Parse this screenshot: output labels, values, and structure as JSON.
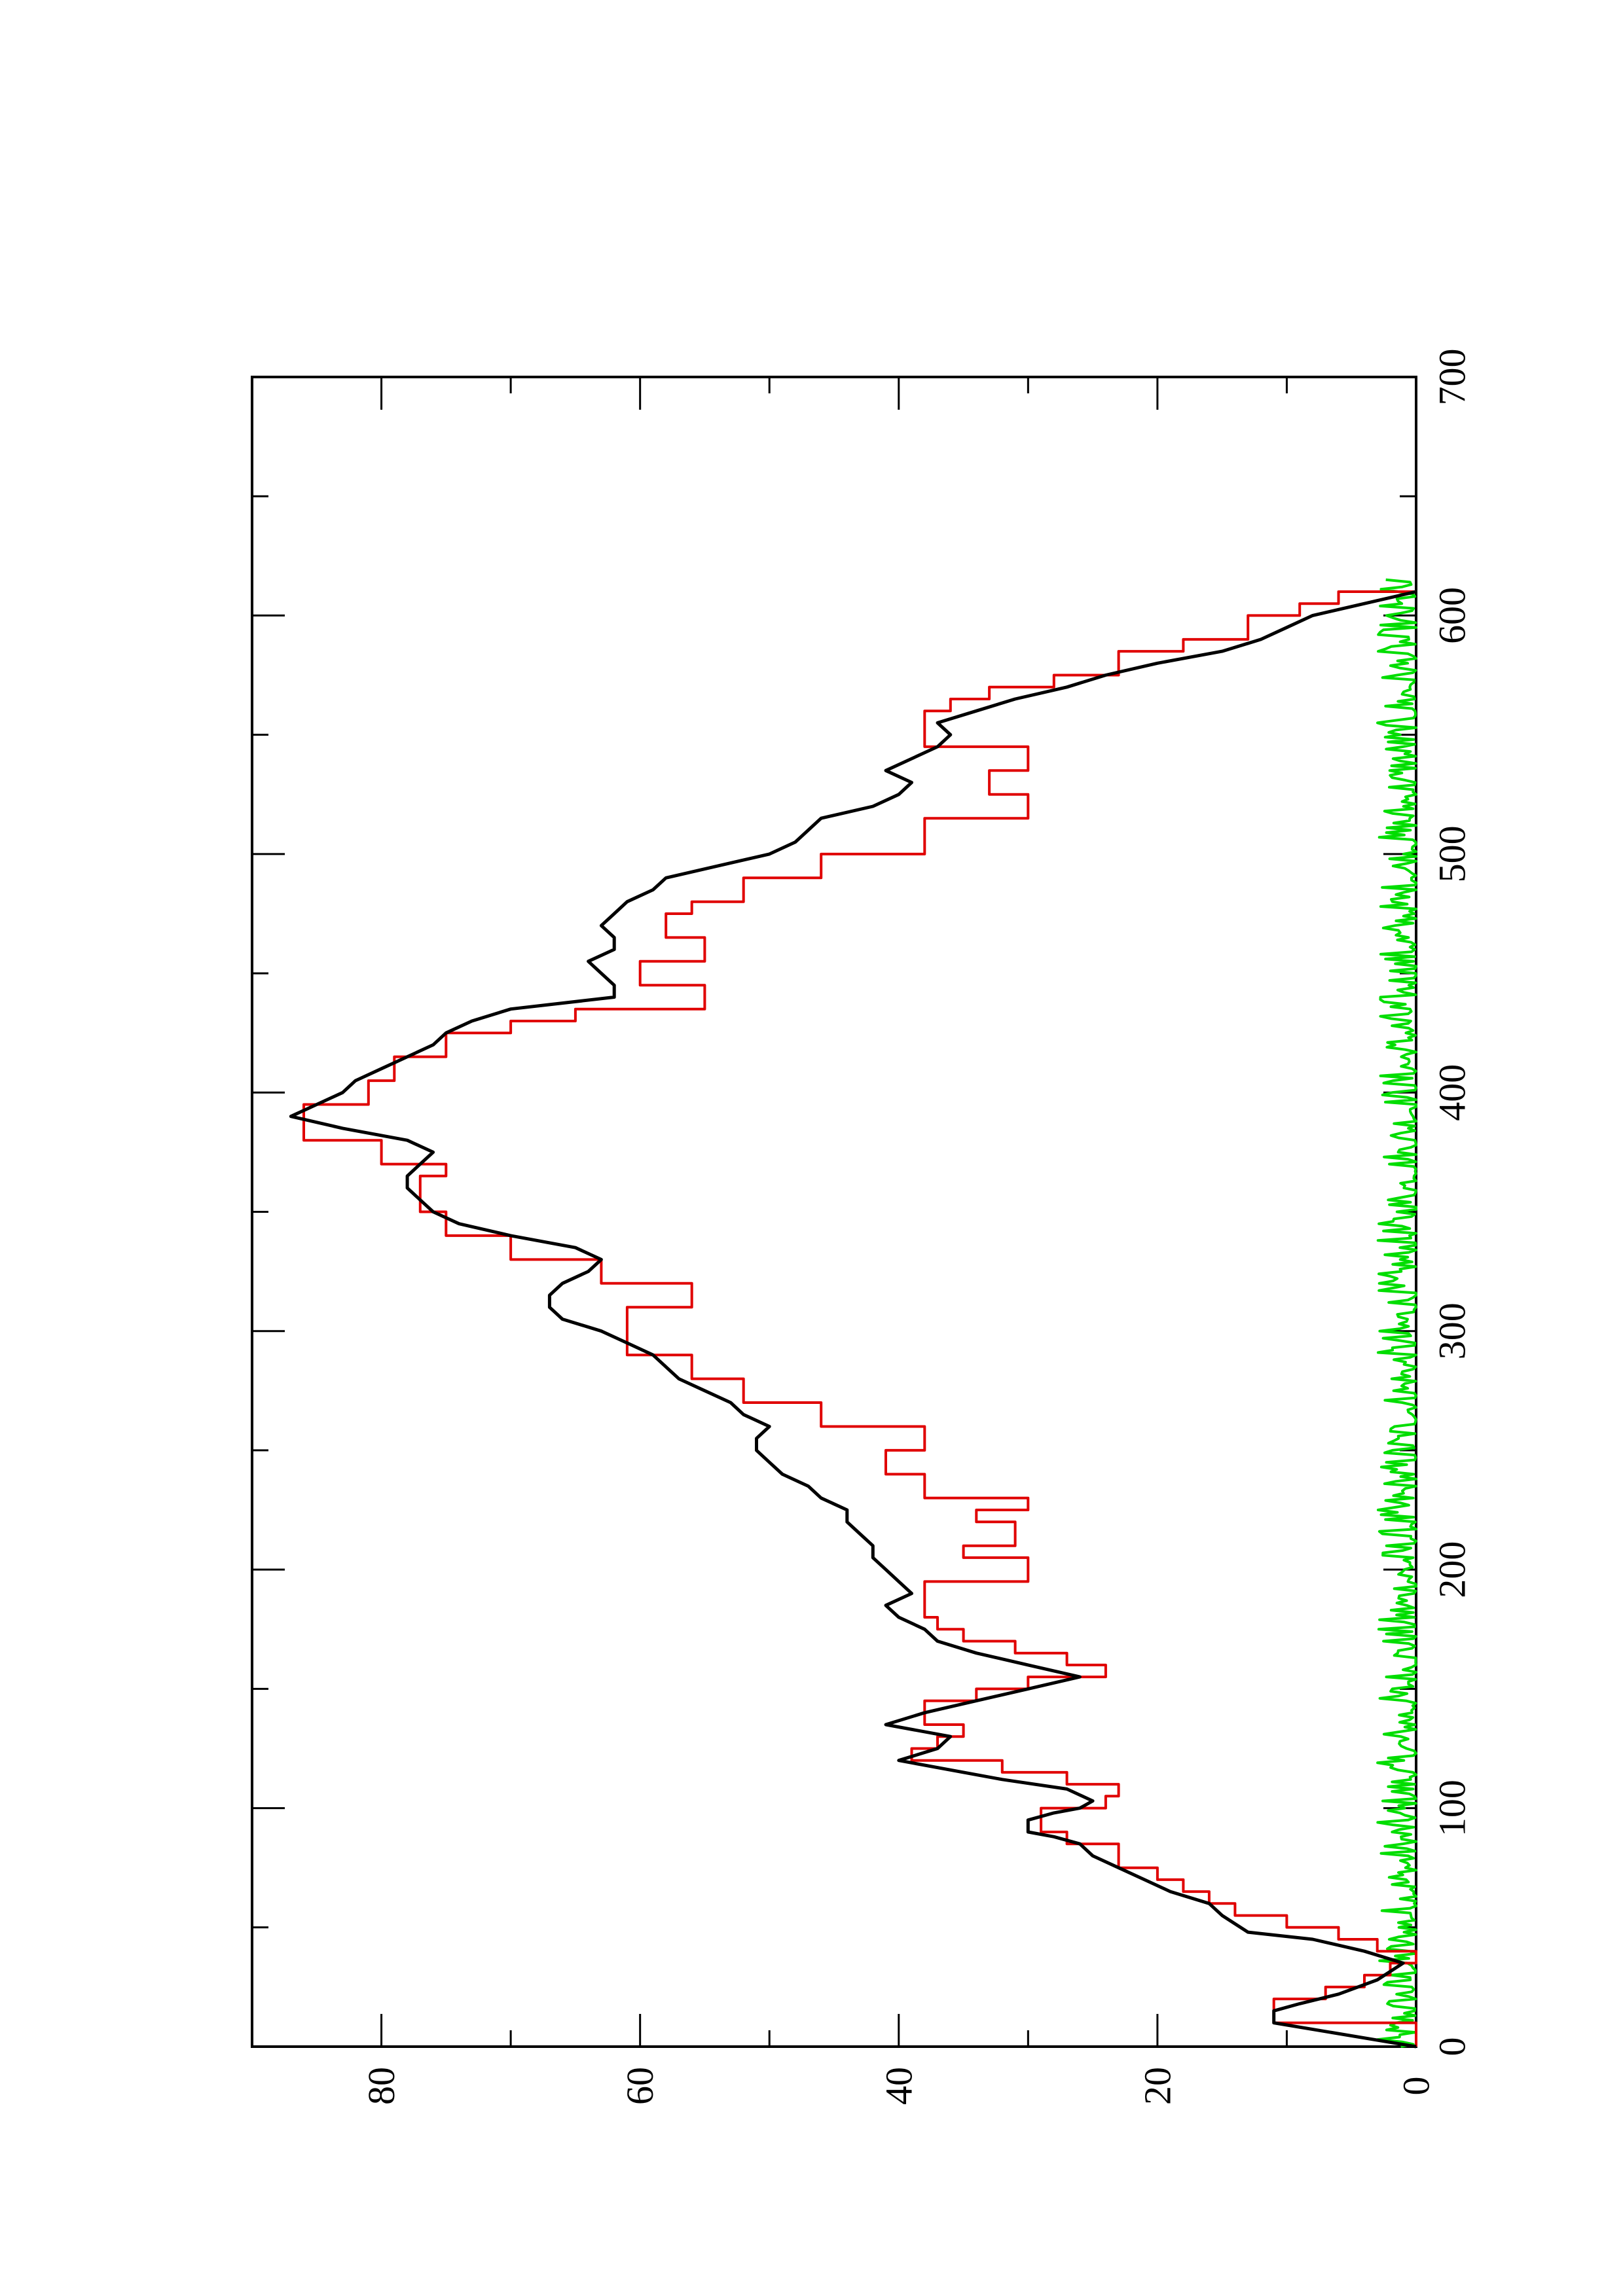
{
  "chart_data": {
    "type": "line",
    "orientation": "rotated-90-ccw",
    "title": "",
    "xlabel": "",
    "ylabel": "",
    "xlim": [
      0,
      700
    ],
    "ylim": [
      0,
      90
    ],
    "x_major_ticks": [
      0,
      100,
      200,
      300,
      400,
      500,
      600,
      700
    ],
    "x_minor_ticks": [
      50,
      150,
      250,
      350,
      450,
      550,
      650
    ],
    "y_major_ticks": [
      0,
      20,
      40,
      60,
      80
    ],
    "y_minor_ticks": [
      10,
      30,
      50,
      70
    ],
    "x_tick_labels": [
      "0",
      "100",
      "200",
      "300",
      "400",
      "500",
      "600",
      "700"
    ],
    "y_tick_labels": [
      "0",
      "20",
      "40",
      "60",
      "80"
    ],
    "grid": false,
    "legend": "none",
    "series": [
      {
        "color": "#000000",
        "style": "line",
        "x": [
          0,
          10,
          15,
          18,
          22,
          28,
          35,
          40,
          45,
          48,
          55,
          60,
          65,
          70,
          75,
          80,
          85,
          88,
          90,
          95,
          98,
          100,
          103,
          108,
          112,
          115,
          120,
          125,
          130,
          135,
          140,
          145,
          150,
          155,
          160,
          165,
          170,
          175,
          180,
          185,
          190,
          195,
          200,
          205,
          210,
          215,
          220,
          225,
          230,
          235,
          240,
          245,
          250,
          255,
          260,
          265,
          270,
          275,
          280,
          285,
          290,
          295,
          300,
          305,
          310,
          315,
          320,
          325,
          330,
          335,
          340,
          345,
          350,
          355,
          360,
          365,
          370,
          375,
          380,
          385,
          390,
          395,
          400,
          405,
          410,
          415,
          420,
          425,
          430,
          435,
          440,
          445,
          450,
          455,
          460,
          465,
          470,
          475,
          480,
          485,
          490,
          495,
          500,
          505,
          510,
          515,
          520,
          525,
          530,
          535,
          540,
          545,
          550,
          555,
          560,
          565,
          570,
          575,
          580,
          585,
          590,
          595,
          600,
          605,
          610
        ],
        "y": [
          0,
          11,
          11,
          9,
          6,
          3,
          1,
          4,
          8,
          13,
          15,
          16,
          19,
          21,
          23,
          25,
          26,
          28,
          30,
          30,
          28,
          26,
          25,
          27,
          32,
          35,
          40,
          37,
          36,
          41,
          38,
          34,
          30,
          26,
          30,
          34,
          37,
          38,
          40,
          41,
          39,
          40,
          41,
          42,
          42,
          43,
          44,
          44,
          46,
          47,
          49,
          50,
          51,
          51,
          50,
          52,
          53,
          55,
          57,
          58,
          59,
          61,
          63,
          66,
          67,
          67,
          66,
          64,
          63,
          65,
          70,
          74,
          76,
          77,
          78,
          78,
          77,
          76,
          78,
          83,
          87,
          85,
          83,
          82,
          80,
          78,
          76,
          75,
          73,
          70,
          62,
          62,
          63,
          64,
          62,
          62,
          63,
          62,
          61,
          59,
          58,
          54,
          50,
          48,
          47,
          46,
          42,
          40,
          39,
          41,
          39,
          37,
          36,
          37,
          34,
          31,
          27,
          24,
          20,
          15,
          12,
          10,
          8,
          4,
          0
        ]
      },
      {
        "color": "#e00000",
        "style": "step",
        "x": [
          0,
          10,
          15,
          20,
          25,
          30,
          35,
          40,
          45,
          50,
          55,
          60,
          65,
          70,
          75,
          80,
          85,
          90,
          95,
          100,
          105,
          110,
          115,
          120,
          125,
          130,
          135,
          140,
          145,
          150,
          155,
          160,
          165,
          170,
          175,
          180,
          185,
          190,
          195,
          200,
          205,
          210,
          215,
          220,
          225,
          230,
          235,
          240,
          245,
          250,
          255,
          260,
          265,
          270,
          275,
          280,
          285,
          290,
          295,
          300,
          305,
          310,
          315,
          320,
          325,
          330,
          335,
          340,
          345,
          350,
          355,
          360,
          365,
          370,
          375,
          380,
          385,
          390,
          395,
          400,
          405,
          410,
          415,
          420,
          425,
          430,
          435,
          440,
          445,
          450,
          455,
          460,
          465,
          470,
          475,
          480,
          485,
          490,
          495,
          500,
          505,
          510,
          515,
          520,
          525,
          530,
          535,
          540,
          545,
          550,
          555,
          560,
          565,
          570,
          575,
          580,
          585,
          590,
          595,
          600,
          605,
          610
        ],
        "y": [
          0,
          11,
          11,
          7,
          4,
          2,
          0,
          3,
          6,
          10,
          14,
          16,
          18,
          20,
          23,
          23,
          27,
          29,
          29,
          24,
          23,
          27,
          32,
          39,
          37,
          35,
          38,
          38,
          34,
          30,
          24,
          27,
          31,
          35,
          37,
          38,
          38,
          38,
          30,
          30,
          35,
          31,
          31,
          34,
          30,
          38,
          38,
          41,
          41,
          38,
          38,
          46,
          46,
          52,
          52,
          56,
          56,
          61,
          61,
          61,
          61,
          56,
          56,
          63,
          63,
          70,
          70,
          75,
          75,
          77,
          77,
          77,
          75,
          80,
          80,
          86,
          86,
          86,
          81,
          81,
          79,
          79,
          75,
          75,
          70,
          65,
          55,
          55,
          60,
          60,
          55,
          55,
          58,
          58,
          56,
          52,
          52,
          46,
          46,
          38,
          38,
          38,
          30,
          30,
          33,
          33,
          30,
          30,
          38,
          38,
          38,
          36,
          33,
          28,
          23,
          23,
          18,
          13,
          13,
          9,
          6,
          0
        ]
      },
      {
        "color": "#00dd00",
        "style": "noise",
        "x_range": [
          0,
          615
        ],
        "y_range": [
          0,
          3
        ],
        "note_points": 616
      }
    ]
  }
}
